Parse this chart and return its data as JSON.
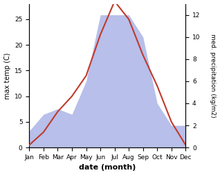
{
  "months": [
    "Jan",
    "Feb",
    "Mar",
    "Apr",
    "May",
    "Jun",
    "Jul",
    "Aug",
    "Sep",
    "Oct",
    "Nov",
    "Dec"
  ],
  "temperature": [
    0.5,
    3.0,
    7.0,
    10.0,
    14.0,
    22.0,
    28.5,
    25.0,
    18.0,
    12.0,
    5.0,
    0.5
  ],
  "precipitation": [
    1.5,
    3.0,
    3.5,
    3.0,
    6.0,
    12.0,
    12.0,
    12.0,
    10.0,
    4.0,
    2.0,
    2.0
  ],
  "temp_color": "#c0392b",
  "precip_fill_color": "#b0b8e8",
  "xlabel": "date (month)",
  "ylabel_left": "max temp (C)",
  "ylabel_right": "med. precipitation (kg/m2)",
  "ylim_left": [
    0,
    28
  ],
  "ylim_right": [
    0,
    13
  ],
  "yticks_left": [
    0,
    5,
    10,
    15,
    20,
    25
  ],
  "yticks_right": [
    0,
    2,
    4,
    6,
    8,
    10,
    12
  ],
  "fig_width": 3.18,
  "fig_height": 2.54,
  "dpi": 100
}
